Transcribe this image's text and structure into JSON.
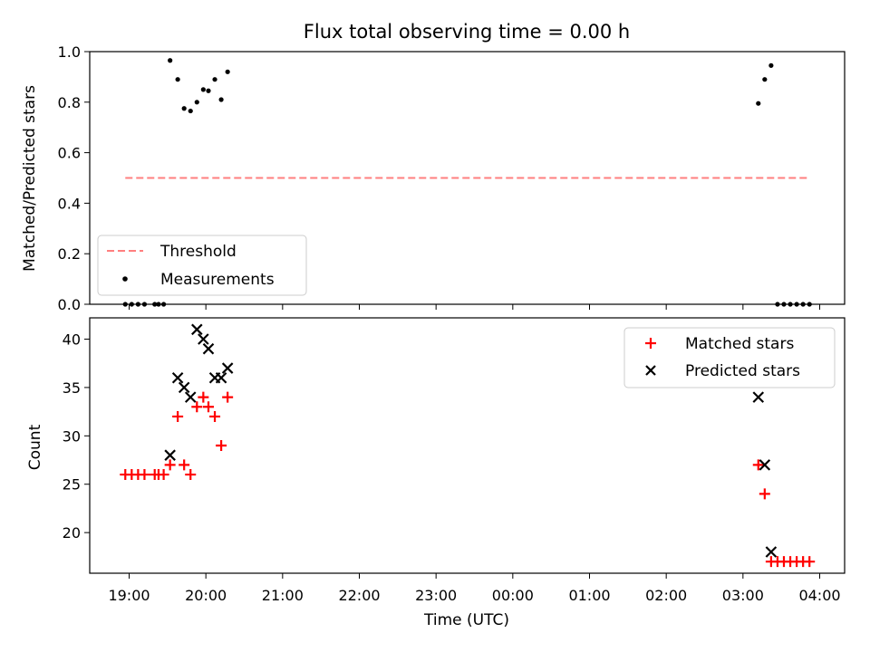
{
  "chart_data": [
    {
      "type": "scatter",
      "title": "Flux total observing time = 0.00 h",
      "xlabel": "",
      "ylabel": "Matched/Predicted stars",
      "ylim": [
        0,
        1.0
      ],
      "yticks": [
        "0.0",
        "0.2",
        "0.4",
        "0.6",
        "0.8",
        "1.0"
      ],
      "legend_position": "lower-left",
      "series": [
        {
          "name": "Threshold",
          "style": "dashed-line",
          "color": "#ff7f7f",
          "points": [
            [
              "18:57",
              0.5
            ],
            [
              "03:52",
              0.5
            ]
          ]
        },
        {
          "name": "Measurements",
          "style": "dot",
          "color": "#000000",
          "points": [
            [
              "18:57",
              0.0
            ],
            [
              "19:02",
              0.0
            ],
            [
              "19:07",
              0.0
            ],
            [
              "19:12",
              0.0
            ],
            [
              "19:20",
              0.0
            ],
            [
              "19:23",
              0.0
            ],
            [
              "19:27",
              0.0
            ],
            [
              "19:32",
              0.965
            ],
            [
              "19:38",
              0.89
            ],
            [
              "19:43",
              0.775
            ],
            [
              "19:48",
              0.765
            ],
            [
              "19:53",
              0.8
            ],
            [
              "19:58",
              0.85
            ],
            [
              "20:02",
              0.845
            ],
            [
              "20:07",
              0.89
            ],
            [
              "20:12",
              0.81
            ],
            [
              "20:17",
              0.92
            ],
            [
              "03:12",
              0.795
            ],
            [
              "03:17",
              0.89
            ],
            [
              "03:22",
              0.945
            ],
            [
              "03:27",
              0.0
            ],
            [
              "03:32",
              0.0
            ],
            [
              "03:37",
              0.0
            ],
            [
              "03:42",
              0.0
            ],
            [
              "03:47",
              0.0
            ],
            [
              "03:52",
              0.0
            ]
          ]
        }
      ]
    },
    {
      "type": "scatter",
      "title": "",
      "xlabel": "Time (UTC)",
      "ylabel": "Count",
      "ylim": [
        15.8,
        42.2
      ],
      "yticks": [
        "20",
        "25",
        "30",
        "35",
        "40"
      ],
      "xticks": [
        "19:00",
        "20:00",
        "21:00",
        "22:00",
        "23:00",
        "00:00",
        "01:00",
        "02:00",
        "03:00",
        "04:00"
      ],
      "legend_position": "upper-right",
      "series": [
        {
          "name": "Matched stars",
          "style": "plus",
          "color": "#ff0000",
          "points": [
            [
              "18:57",
              26
            ],
            [
              "19:02",
              26
            ],
            [
              "19:07",
              26
            ],
            [
              "19:12",
              26
            ],
            [
              "19:20",
              26
            ],
            [
              "19:23",
              26
            ],
            [
              "19:27",
              26
            ],
            [
              "19:32",
              27
            ],
            [
              "19:38",
              32
            ],
            [
              "19:43",
              27
            ],
            [
              "19:48",
              26
            ],
            [
              "19:53",
              33
            ],
            [
              "19:58",
              34
            ],
            [
              "20:02",
              33
            ],
            [
              "20:07",
              32
            ],
            [
              "20:12",
              29
            ],
            [
              "20:17",
              34
            ],
            [
              "03:12",
              27
            ],
            [
              "03:17",
              24
            ],
            [
              "03:22",
              17
            ],
            [
              "03:27",
              17
            ],
            [
              "03:32",
              17
            ],
            [
              "03:37",
              17
            ],
            [
              "03:42",
              17
            ],
            [
              "03:47",
              17
            ],
            [
              "03:52",
              17
            ]
          ]
        },
        {
          "name": "Predicted stars",
          "style": "x",
          "color": "#000000",
          "points": [
            [
              "19:32",
              28
            ],
            [
              "19:38",
              36
            ],
            [
              "19:43",
              35
            ],
            [
              "19:48",
              34
            ],
            [
              "19:53",
              41
            ],
            [
              "19:58",
              40
            ],
            [
              "20:02",
              39
            ],
            [
              "20:07",
              36
            ],
            [
              "20:12",
              36
            ],
            [
              "20:17",
              37
            ],
            [
              "03:12",
              34
            ],
            [
              "03:17",
              27
            ],
            [
              "03:22",
              18
            ]
          ]
        }
      ]
    }
  ]
}
